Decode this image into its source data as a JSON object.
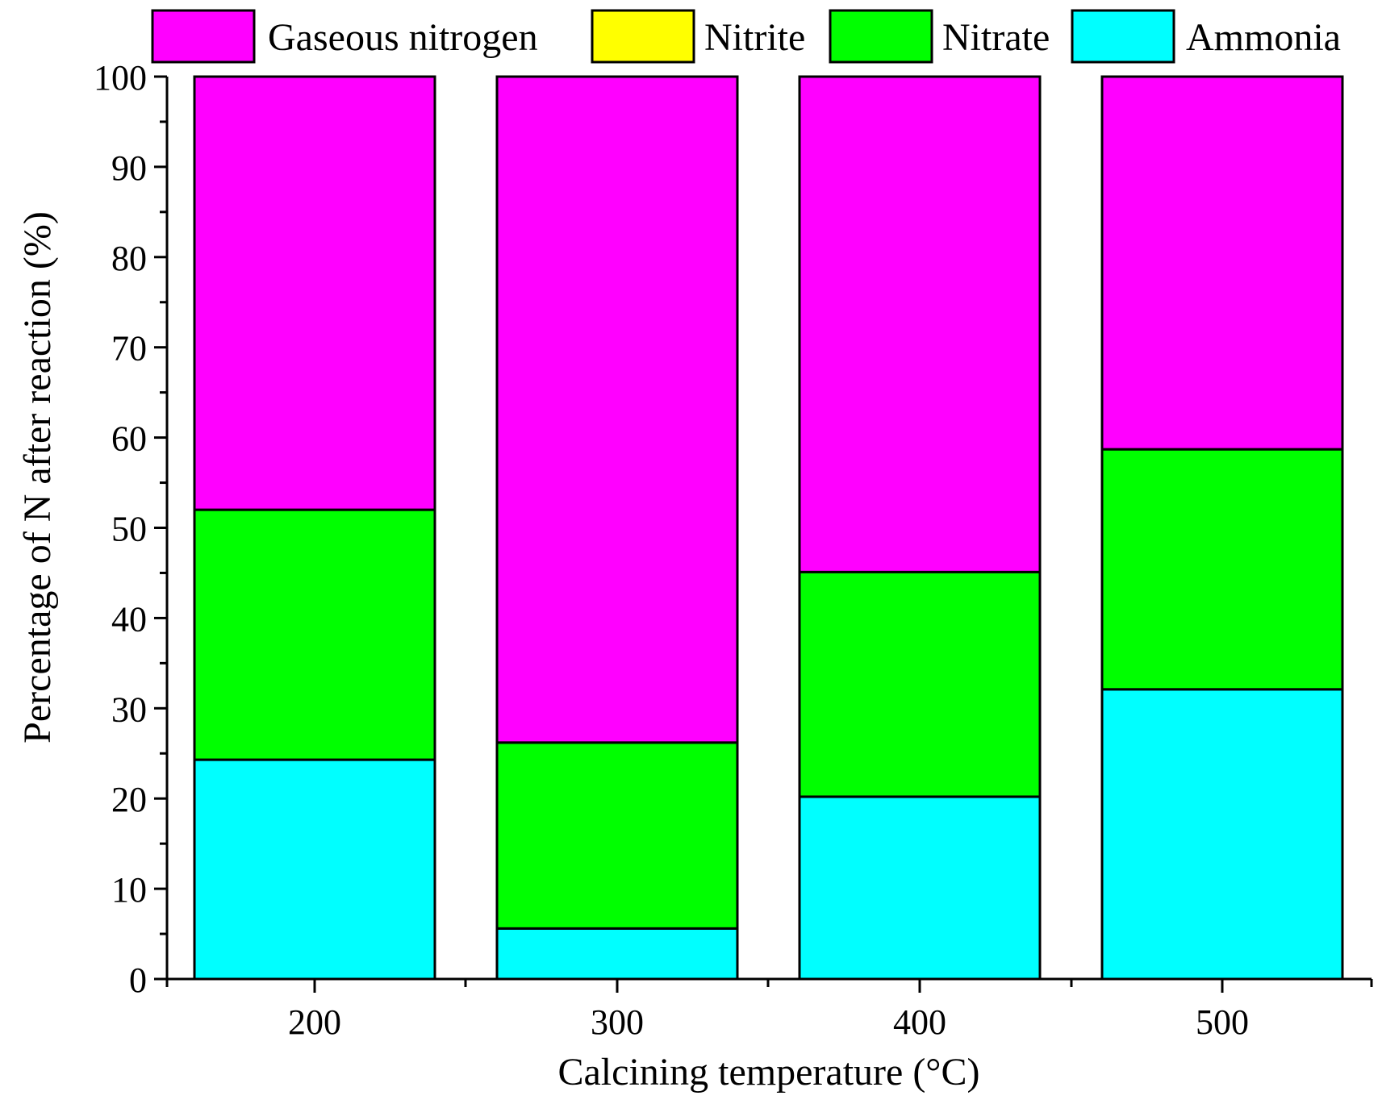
{
  "chart_data": {
    "type": "bar",
    "stacked": true,
    "title": "",
    "xlabel": "Calcining temperature (°C)",
    "ylabel": "Percentage of N after reaction (%)",
    "categories": [
      "200",
      "300",
      "400",
      "500"
    ],
    "ylim": [
      0,
      100
    ],
    "yticks": [
      "0",
      "10",
      "20",
      "30",
      "40",
      "50",
      "60",
      "70",
      "80",
      "90",
      "100"
    ],
    "grid": false,
    "legend_position": "top",
    "series": [
      {
        "name": "Ammonia",
        "color": "#00FFFF",
        "values": [
          24.3,
          5.6,
          20.2,
          32.1
        ]
      },
      {
        "name": "Nitrite",
        "color": "#FFFF00",
        "values": [
          0,
          0,
          0,
          0
        ]
      },
      {
        "name": "Nitrate",
        "color": "#00FF00",
        "values": [
          27.7,
          20.6,
          24.9,
          26.6
        ]
      },
      {
        "name": "Gaseous nitrogen",
        "color": "#FF00FF",
        "values": [
          48.0,
          73.8,
          54.9,
          41.3
        ]
      }
    ],
    "legend_order": [
      "Gaseous nitrogen",
      "Nitrite",
      "Nitrate",
      "Ammonia"
    ]
  }
}
